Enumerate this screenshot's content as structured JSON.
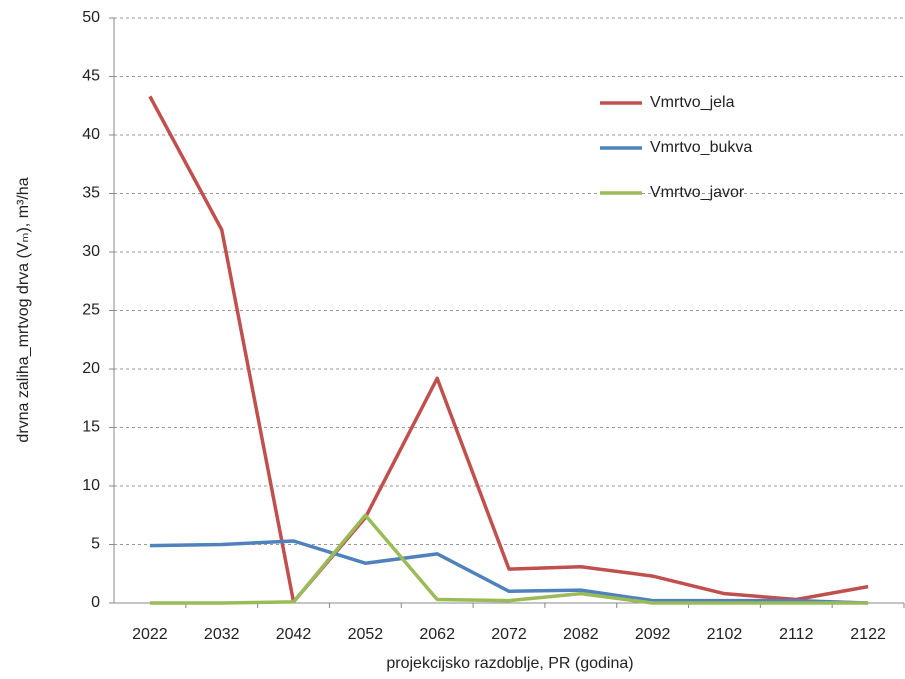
{
  "chart_data": {
    "type": "line",
    "categories": [
      "2022",
      "2032",
      "2042",
      "2052",
      "2062",
      "2072",
      "2082",
      "2092",
      "2102",
      "2112",
      "2122"
    ],
    "series": [
      {
        "name": "Vmrtvo_jela",
        "color": "#c0504d",
        "values": [
          43.3,
          31.9,
          0.1,
          7.3,
          19.2,
          2.9,
          3.1,
          2.3,
          0.8,
          0.3,
          1.4
        ]
      },
      {
        "name": "Vmrtvo_bukva",
        "color": "#4f81bd",
        "values": [
          4.9,
          5.0,
          5.3,
          3.4,
          4.2,
          1.0,
          1.1,
          0.2,
          0.2,
          0.2,
          0.0
        ]
      },
      {
        "name": "Vmrtvo_javor",
        "color": "#9bbb59",
        "values": [
          0.0,
          0.0,
          0.1,
          7.5,
          0.3,
          0.2,
          0.8,
          0.0,
          0.0,
          0.0,
          0.0
        ]
      }
    ],
    "xlabel": "projekcijsko razdoblje, PR (godina)",
    "ylabel": "drvna zaliha_mrtvog drva (Vₘ), m³/ha",
    "ylim": [
      0,
      50
    ],
    "yticks": [
      0,
      5,
      10,
      15,
      20,
      25,
      30,
      35,
      40,
      45,
      50
    ],
    "grid": true,
    "legend": "upper right"
  }
}
